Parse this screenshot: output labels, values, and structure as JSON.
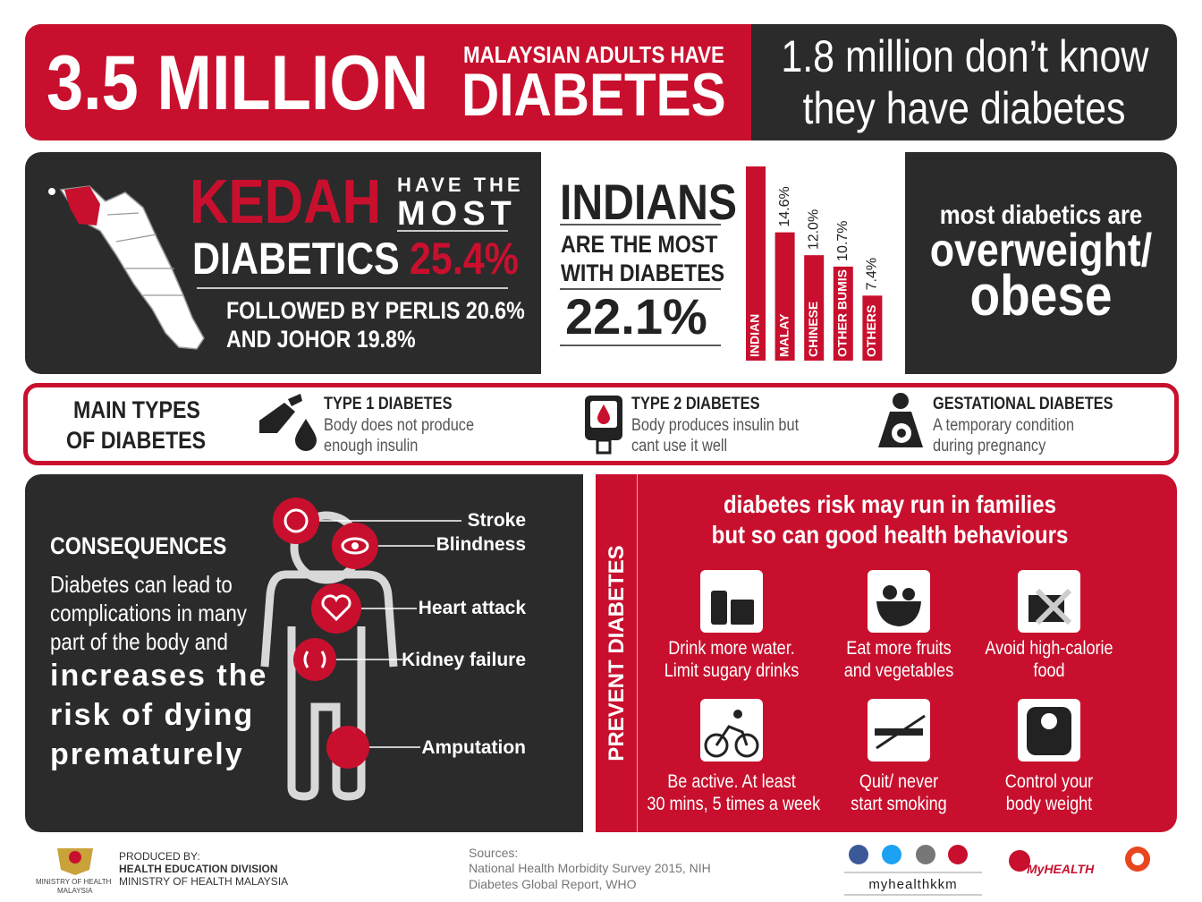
{
  "header": {
    "big_number": "3.5 MILLION",
    "subtitle": "MALAYSIAN ADULTS HAVE",
    "title": "DIABETES",
    "aside": [
      "1.8 million don’t know",
      "they have diabetes"
    ]
  },
  "kedah": {
    "name": "KEDAH",
    "have_the": "HAVE THE",
    "most": "MOST",
    "diabetics": "DIABETICS",
    "rate": "25.4%",
    "followed": [
      "FOLLOWED BY PERLIS 20.6%",
      "AND JOHOR 19.8%"
    ]
  },
  "indians": {
    "title": "INDIANS",
    "lines": [
      "ARE THE MOST",
      "WITH DIABETES"
    ],
    "rate": "22.1%"
  },
  "chart_data": {
    "type": "bar",
    "categories": [
      "INDIAN",
      "MALAY",
      "CHINESE",
      "OTHER BUMIS",
      "OTHERS"
    ],
    "values": [
      22.1,
      14.6,
      12.0,
      10.7,
      7.4
    ],
    "value_labels": [
      null,
      "14.6%",
      "12.0%",
      "10.7%",
      "7.4%"
    ],
    "color": "#c8102e"
  },
  "overweight": {
    "line1": "most diabetics are",
    "line2": "overweight/",
    "line3": "obese"
  },
  "types": {
    "heading": [
      "MAIN TYPES",
      "OF DIABETES"
    ],
    "items": [
      {
        "title": "TYPE 1 DIABETES",
        "desc": [
          "Body does not produce",
          "enough insulin"
        ]
      },
      {
        "title": "TYPE 2 DIABETES",
        "desc": [
          "Body produces insulin but",
          "cant use it well"
        ]
      },
      {
        "title": "GESTATIONAL DIABETES",
        "desc": [
          "A temporary condition",
          "during pregnancy"
        ]
      }
    ]
  },
  "consequences": {
    "title": "CONSEQUENCES",
    "text": [
      "Diabetes can lead to",
      "complications in many",
      "part of the body and"
    ],
    "emphasis": [
      "increases the",
      "risk of dying",
      "prematurely"
    ],
    "labels": [
      "Stroke",
      "Blindness",
      "Heart attack",
      "Kidney failure",
      "Amputation"
    ]
  },
  "prevent": {
    "side_title": "PREVENT DIABETES",
    "headline": [
      "diabetes risk may run in families",
      "but so can good health behaviours"
    ],
    "tips": [
      [
        "Drink more water.",
        "Limit sugary drinks"
      ],
      [
        "Eat more fruits",
        "and vegetables"
      ],
      [
        "Avoid high-calorie",
        "food"
      ],
      [
        "Be active.  At least",
        "30 mins, 5 times a week"
      ],
      [
        "Quit/ never",
        "start smoking"
      ],
      [
        "Control your",
        "body weight"
      ]
    ]
  },
  "footer": {
    "ministry": [
      "MINISTRY OF HEALTH",
      "MALAYSIA"
    ],
    "produced_by": "PRODUCED BY:",
    "division": "HEALTH EDUCATION  DIVISION",
    "ministry_full": "MINISTRY OF HEALTH MALAYSIA",
    "sources_title": "Sources:",
    "sources": [
      "National Health Morbidity Survey 2015, NIH",
      "Diabetes Global Report, WHO"
    ],
    "handle": "myhealthkkm",
    "logo": "MyHEALTH"
  }
}
